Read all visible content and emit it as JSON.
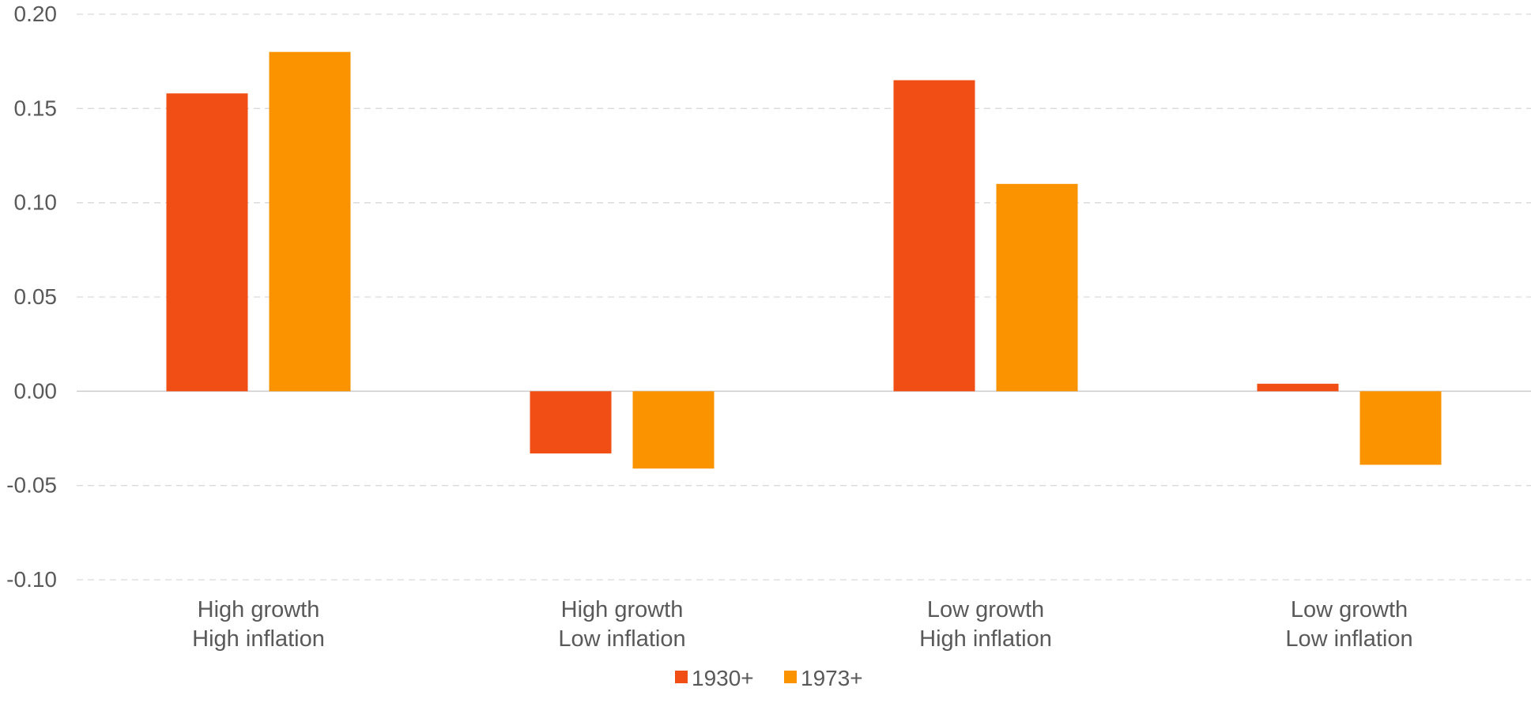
{
  "chart_data": {
    "type": "bar",
    "title": "",
    "xlabel": "",
    "ylabel": "",
    "categories": [
      [
        "High growth",
        "High inflation"
      ],
      [
        "High growth",
        "Low inflation"
      ],
      [
        "Low growth",
        "High inflation"
      ],
      [
        "Low growth",
        "Low inflation"
      ]
    ],
    "series": [
      {
        "name": "1930+",
        "color": "#F04E14",
        "values": [
          0.158,
          -0.033,
          0.165,
          0.004
        ]
      },
      {
        "name": "1973+",
        "color": "#FB9300",
        "values": [
          0.18,
          -0.041,
          0.11,
          -0.039
        ]
      }
    ],
    "ylim": [
      -0.1,
      0.2
    ],
    "yticks": [
      "0.20",
      "0.15",
      "0.10",
      "0.05",
      "0.00",
      "-0.05",
      "-0.10"
    ],
    "ytick_values": [
      0.2,
      0.15,
      0.1,
      0.05,
      0.0,
      -0.05,
      -0.1
    ],
    "grid": true,
    "legend_position": "bottom"
  }
}
